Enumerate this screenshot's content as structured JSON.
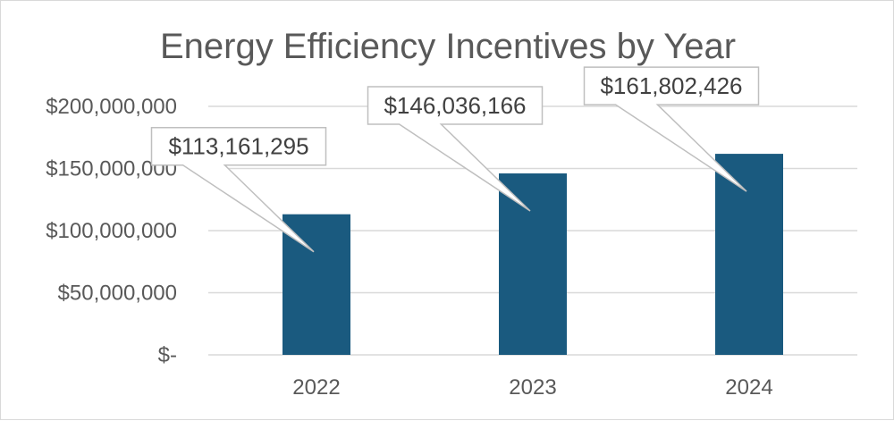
{
  "chart_data": {
    "type": "bar",
    "title": "Energy Efficiency Incentives by Year",
    "xlabel": "",
    "ylabel": "",
    "categories": [
      "2022",
      "2023",
      "2024"
    ],
    "values": [
      113161295,
      146036166,
      161802426
    ],
    "data_labels": [
      "$113,161,295",
      "$146,036,166",
      "$161,802,426"
    ],
    "ylim": [
      0,
      200000000
    ],
    "yticks": [
      0,
      50000000,
      100000000,
      150000000,
      200000000
    ],
    "ytick_labels": [
      "$-",
      "$50,000,000",
      "$100,000,000",
      "$150,000,000",
      "$200,000,000"
    ],
    "grid": true,
    "legend": "none",
    "bar_color": "#1a5a7f"
  }
}
